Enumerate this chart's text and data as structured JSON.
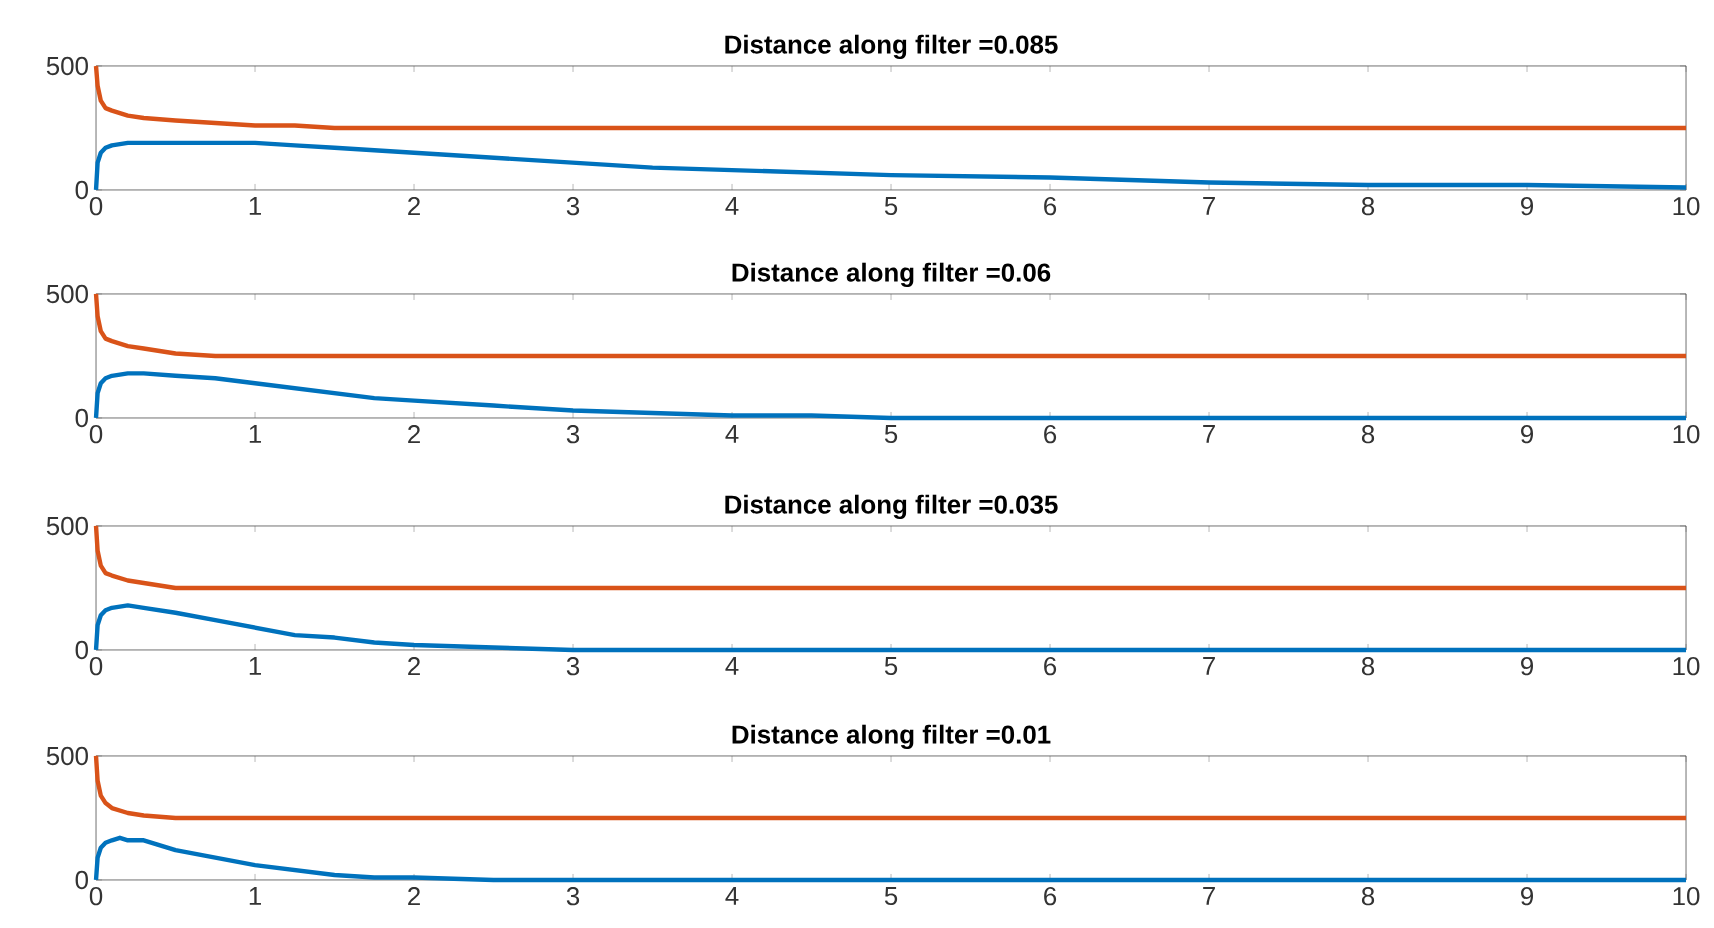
{
  "chart_data": [
    {
      "type": "line",
      "title": "Distance along filter =0.085",
      "xlim": [
        0,
        10
      ],
      "ylim": [
        0,
        500
      ],
      "xticks": [
        0,
        1,
        2,
        3,
        4,
        5,
        6,
        7,
        8,
        9,
        10
      ],
      "yticks": [
        0,
        500
      ],
      "series": [
        {
          "color": "#0072bd",
          "x": [
            0,
            0.01,
            0.03,
            0.06,
            0.1,
            0.2,
            0.3,
            0.5,
            0.75,
            1,
            1.25,
            1.5,
            1.75,
            2,
            2.5,
            3,
            3.5,
            4,
            4.5,
            5,
            6,
            7,
            8,
            9,
            10
          ],
          "values": [
            0,
            110,
            150,
            170,
            180,
            190,
            190,
            190,
            190,
            190,
            180,
            170,
            160,
            150,
            130,
            110,
            90,
            80,
            70,
            60,
            50,
            30,
            20,
            20,
            10
          ]
        },
        {
          "color": "#d95319",
          "x": [
            0,
            0.01,
            0.03,
            0.06,
            0.1,
            0.2,
            0.3,
            0.5,
            0.75,
            1,
            1.25,
            1.5,
            2,
            3,
            4,
            5,
            6,
            7,
            8,
            9,
            10
          ],
          "values": [
            500,
            420,
            360,
            330,
            320,
            300,
            290,
            280,
            270,
            260,
            260,
            250,
            250,
            250,
            250,
            250,
            250,
            250,
            250,
            250,
            250
          ]
        }
      ]
    },
    {
      "type": "line",
      "title": "Distance along filter =0.06",
      "xlim": [
        0,
        10
      ],
      "ylim": [
        0,
        500
      ],
      "xticks": [
        0,
        1,
        2,
        3,
        4,
        5,
        6,
        7,
        8,
        9,
        10
      ],
      "yticks": [
        0,
        500
      ],
      "series": [
        {
          "color": "#0072bd",
          "x": [
            0,
            0.01,
            0.03,
            0.06,
            0.1,
            0.2,
            0.3,
            0.5,
            0.75,
            1,
            1.25,
            1.5,
            1.75,
            2,
            2.5,
            3,
            3.5,
            4,
            4.5,
            5,
            6,
            7,
            8,
            9,
            10
          ],
          "values": [
            0,
            100,
            140,
            160,
            170,
            180,
            180,
            170,
            160,
            140,
            120,
            100,
            80,
            70,
            50,
            30,
            20,
            10,
            10,
            0,
            0,
            0,
            0,
            0,
            0
          ]
        },
        {
          "color": "#d95319",
          "x": [
            0,
            0.01,
            0.03,
            0.06,
            0.1,
            0.2,
            0.3,
            0.5,
            0.75,
            1,
            1.5,
            2,
            3,
            4,
            5,
            6,
            7,
            8,
            9,
            10
          ],
          "values": [
            500,
            410,
            350,
            320,
            310,
            290,
            280,
            260,
            250,
            250,
            250,
            250,
            250,
            250,
            250,
            250,
            250,
            250,
            250,
            250
          ]
        }
      ]
    },
    {
      "type": "line",
      "title": "Distance along filter =0.035",
      "xlim": [
        0,
        10
      ],
      "ylim": [
        0,
        500
      ],
      "xticks": [
        0,
        1,
        2,
        3,
        4,
        5,
        6,
        7,
        8,
        9,
        10
      ],
      "yticks": [
        0,
        500
      ],
      "series": [
        {
          "color": "#0072bd",
          "x": [
            0,
            0.01,
            0.03,
            0.06,
            0.1,
            0.2,
            0.3,
            0.5,
            0.75,
            1,
            1.25,
            1.5,
            1.75,
            2,
            2.5,
            3,
            3.5,
            4,
            5,
            6,
            7,
            8,
            9,
            10
          ],
          "values": [
            0,
            100,
            140,
            160,
            170,
            180,
            170,
            150,
            120,
            90,
            60,
            50,
            30,
            20,
            10,
            0,
            0,
            0,
            0,
            0,
            0,
            0,
            0,
            0
          ]
        },
        {
          "color": "#d95319",
          "x": [
            0,
            0.01,
            0.03,
            0.06,
            0.1,
            0.2,
            0.3,
            0.5,
            0.75,
            1,
            2,
            3,
            4,
            5,
            6,
            7,
            8,
            9,
            10
          ],
          "values": [
            500,
            400,
            340,
            310,
            300,
            280,
            270,
            250,
            250,
            250,
            250,
            250,
            250,
            250,
            250,
            250,
            250,
            250,
            250
          ]
        }
      ]
    },
    {
      "type": "line",
      "title": "Distance along filter =0.01",
      "xlim": [
        0,
        10
      ],
      "ylim": [
        0,
        500
      ],
      "xticks": [
        0,
        1,
        2,
        3,
        4,
        5,
        6,
        7,
        8,
        9,
        10
      ],
      "yticks": [
        0,
        500
      ],
      "series": [
        {
          "color": "#0072bd",
          "x": [
            0,
            0.01,
            0.03,
            0.06,
            0.1,
            0.15,
            0.2,
            0.3,
            0.5,
            0.75,
            1,
            1.25,
            1.5,
            1.75,
            2,
            2.5,
            3,
            4,
            5,
            6,
            7,
            8,
            9,
            10
          ],
          "values": [
            0,
            90,
            130,
            150,
            160,
            170,
            160,
            160,
            120,
            90,
            60,
            40,
            20,
            10,
            10,
            0,
            0,
            0,
            0,
            0,
            0,
            0,
            0,
            0
          ]
        },
        {
          "color": "#d95319",
          "x": [
            0,
            0.01,
            0.03,
            0.06,
            0.1,
            0.2,
            0.3,
            0.5,
            0.75,
            1,
            2,
            3,
            4,
            5,
            6,
            7,
            8,
            9,
            10
          ],
          "values": [
            500,
            400,
            340,
            310,
            290,
            270,
            260,
            250,
            250,
            250,
            250,
            250,
            250,
            250,
            250,
            250,
            250,
            250,
            250
          ]
        }
      ]
    }
  ]
}
